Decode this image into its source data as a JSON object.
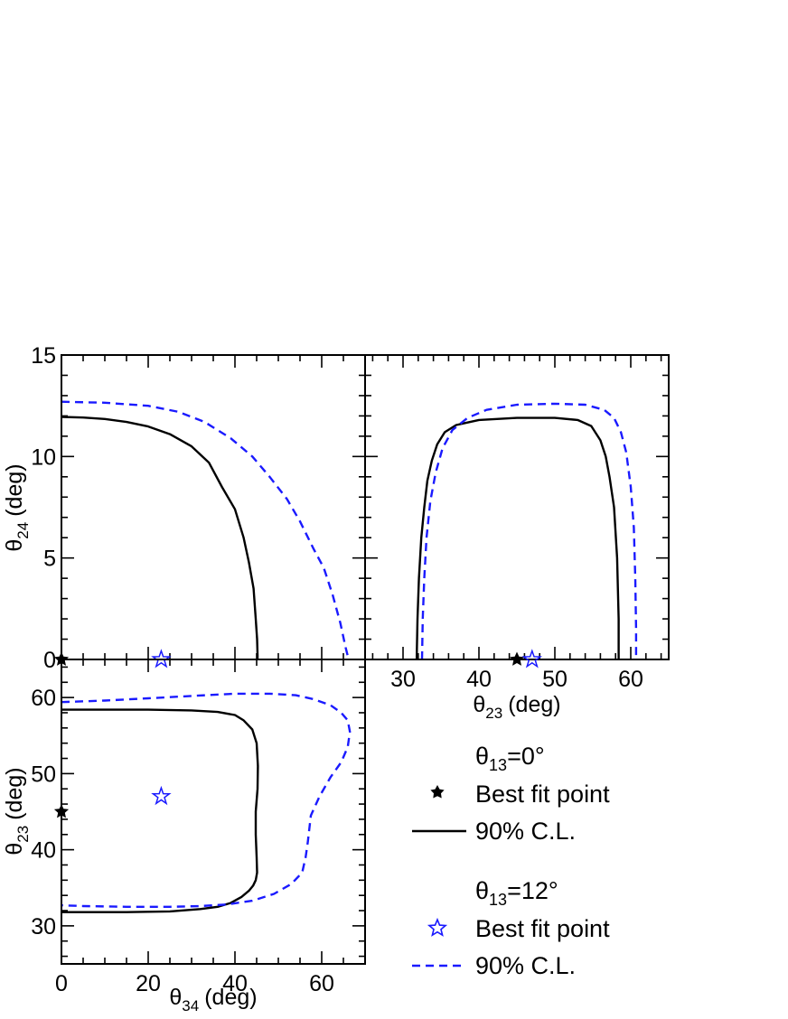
{
  "colors": {
    "solid": "#000000",
    "dashed": "#1a1aff",
    "frame": "#000000"
  },
  "chart_data": [
    {
      "id": "panel_tl",
      "type": "line",
      "xlabel": "",
      "ylabel_base": "θ",
      "ylabel_sub": "24",
      "ylabel_unit": "(deg)",
      "xlim": [
        0,
        70
      ],
      "ylim": [
        0,
        15
      ],
      "y_ticks": [
        0,
        5,
        10,
        15
      ],
      "y_tick_labels": [
        "0",
        "5",
        "10",
        "15"
      ],
      "x_ticks": [],
      "x_tick_labels": [],
      "series": [
        {
          "style": "solid",
          "color": "#000000",
          "x": [
            0,
            5,
            10,
            15,
            20,
            25,
            30,
            34,
            37,
            40,
            42,
            43.2,
            44.3,
            44.8,
            45.1,
            45.2,
            45.2
          ],
          "y": [
            11.95,
            11.92,
            11.85,
            11.7,
            11.48,
            11.1,
            10.5,
            9.7,
            8.5,
            7.4,
            6.0,
            4.8,
            3.5,
            2.0,
            1.0,
            0.2,
            0
          ]
        },
        {
          "style": "dashed",
          "color": "#1a1aff",
          "x": [
            0,
            10,
            20,
            27,
            33,
            39,
            44,
            48,
            52,
            55,
            58,
            60.5,
            62.5,
            64.3,
            65.5,
            66.2
          ],
          "y": [
            12.7,
            12.65,
            12.5,
            12.2,
            11.7,
            10.9,
            10.0,
            9.0,
            7.9,
            6.8,
            5.5,
            4.5,
            3.2,
            1.8,
            0.6,
            0
          ]
        }
      ],
      "points": [
        {
          "style": "filled-star",
          "color": "#000000",
          "x": 0,
          "y": 0
        },
        {
          "style": "open-star",
          "color": "#1a1aff",
          "x": 23,
          "y": 0
        }
      ]
    },
    {
      "id": "panel_tr",
      "type": "line",
      "xlabel_base": "θ",
      "xlabel_sub": "23",
      "xlabel_unit": "(deg)",
      "ylabel": "",
      "xlim": [
        25,
        65
      ],
      "ylim": [
        0,
        15
      ],
      "x_ticks": [
        30,
        40,
        50,
        60
      ],
      "x_tick_labels": [
        "30",
        "40",
        "50",
        "60"
      ],
      "y_ticks": [],
      "y_tick_labels": [],
      "series": [
        {
          "style": "solid",
          "color": "#000000",
          "x": [
            31.8,
            31.9,
            32.1,
            32.4,
            32.8,
            33.2,
            33.8,
            34.5,
            35.5,
            37,
            40,
            45,
            50,
            53,
            54.8,
            56,
            56.7,
            57.2,
            57.8,
            58.2,
            58.4,
            58.4
          ],
          "y": [
            0,
            2,
            4,
            6,
            7.5,
            8.8,
            9.8,
            10.6,
            11.2,
            11.55,
            11.8,
            11.9,
            11.9,
            11.8,
            11.5,
            10.8,
            10,
            9.0,
            7.5,
            5,
            2,
            0
          ]
        },
        {
          "style": "dashed",
          "color": "#1a1aff",
          "x": [
            32.5,
            32.6,
            32.8,
            33.1,
            33.6,
            34.3,
            35.2,
            36.5,
            38.5,
            41,
            45,
            50,
            54,
            56.5,
            57.8,
            58.7,
            59.4,
            60,
            60.4,
            60.6,
            60.7,
            60.7
          ],
          "y": [
            0,
            2,
            4,
            6,
            7.8,
            9.2,
            10.4,
            11.3,
            11.9,
            12.3,
            12.55,
            12.6,
            12.55,
            12.3,
            11.9,
            11.2,
            10.2,
            8.5,
            6.5,
            4,
            1.5,
            0
          ]
        }
      ],
      "points": [
        {
          "style": "filled-star",
          "color": "#000000",
          "x": 45,
          "y": 0
        },
        {
          "style": "open-star",
          "color": "#1a1aff",
          "x": 47,
          "y": 0
        }
      ]
    },
    {
      "id": "panel_bl",
      "type": "line",
      "xlabel_base": "θ",
      "xlabel_sub": "34",
      "xlabel_unit": "(deg)",
      "ylabel_base": "θ",
      "ylabel_sub": "23",
      "ylabel_unit": "(deg)",
      "xlim": [
        0,
        70
      ],
      "ylim": [
        25,
        65
      ],
      "x_ticks": [
        0,
        20,
        40,
        60
      ],
      "x_tick_labels": [
        "0",
        "20",
        "40",
        "60"
      ],
      "y_ticks": [
        30,
        40,
        50,
        60
      ],
      "y_tick_labels": [
        "30",
        "40",
        "50",
        "60"
      ],
      "series": [
        {
          "style": "solid",
          "color": "#000000",
          "x": [
            0,
            10,
            20,
            30,
            36,
            40,
            42,
            44,
            45,
            45.3,
            45.2,
            44.8,
            44.8,
            45,
            45.1,
            44.8,
            44.2,
            43.2,
            41.5,
            39,
            36,
            32,
            25,
            15,
            5,
            0
          ],
          "y": [
            58.4,
            58.4,
            58.4,
            58.3,
            58.1,
            57.7,
            57,
            55.8,
            54,
            51,
            48,
            45,
            42,
            39,
            37,
            36,
            35.3,
            34.6,
            33.8,
            33,
            32.5,
            32.2,
            31.9,
            31.8,
            31.8,
            31.8
          ]
        },
        {
          "style": "dashed",
          "color": "#1a1aff",
          "x": [
            0,
            10,
            20,
            30,
            40,
            48,
            54,
            58,
            62,
            64.5,
            66,
            66.5,
            66,
            64.5,
            62,
            59.5,
            57.5,
            56.8,
            56.3,
            55.5,
            53,
            49,
            44,
            38,
            32,
            25,
            15,
            5,
            0
          ],
          "y": [
            59.4,
            59.6,
            59.9,
            60.2,
            60.5,
            60.5,
            60.3,
            59.8,
            59,
            58,
            57,
            55.5,
            53.5,
            51.5,
            49.5,
            47,
            44.5,
            41,
            39,
            37,
            35.5,
            34.2,
            33.3,
            32.8,
            32.6,
            32.5,
            32.5,
            32.6,
            32.7
          ]
        }
      ],
      "points": [
        {
          "style": "filled-star",
          "color": "#000000",
          "x": 0,
          "y": 45
        },
        {
          "style": "open-star",
          "color": "#1a1aff",
          "x": 23,
          "y": 47
        }
      ]
    }
  ],
  "legend": {
    "group1": {
      "title_base": "θ",
      "title_sub": "13",
      "title_rest": "=0°",
      "best_fit_label": "Best fit point",
      "cl_label": "90% C.L."
    },
    "group2": {
      "title_base": "θ",
      "title_sub": "13",
      "title_rest": "=12°",
      "best_fit_label": "Best fit point",
      "cl_label": "90% C.L."
    }
  }
}
